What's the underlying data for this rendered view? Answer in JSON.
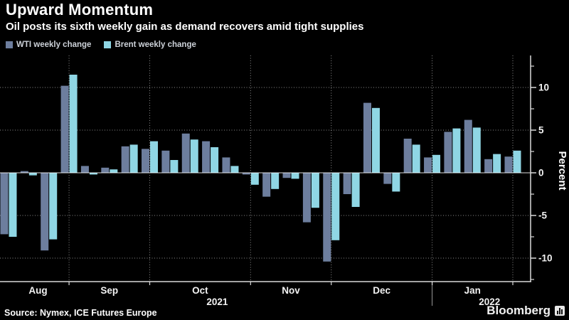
{
  "header": {
    "title": "Upward Momentum",
    "subtitle": "Oil posts its sixth weekly gain as demand recovers amid tight supplies"
  },
  "chart_data": {
    "type": "bar",
    "title": "Upward Momentum",
    "subtitle": "Oil posts its sixth weekly gain as demand recovers amid tight supplies",
    "ylabel": "Percent",
    "ylim": [
      -12.75,
      13.75
    ],
    "y_ticks_major": [
      10,
      5,
      0,
      -5,
      -10
    ],
    "y_ticks_minor": [
      12.5,
      7.5,
      2.5,
      -2.5,
      -7.5,
      -12.5
    ],
    "grid": true,
    "legend_position": "top-left",
    "months": [
      {
        "label": "Aug",
        "weeks": 4
      },
      {
        "label": "Sep",
        "weeks": 4
      },
      {
        "label": "Oct",
        "weeks": 5
      },
      {
        "label": "Nov",
        "weeks": 4
      },
      {
        "label": "Dec",
        "weeks": 5
      },
      {
        "label": "Jan",
        "weeks": 4
      }
    ],
    "year_labels": [
      {
        "label": "2021",
        "under_month": "Oct"
      },
      {
        "label": "2022",
        "under_month": "Jan"
      }
    ],
    "year_divider_after_month": "Dec",
    "series": [
      {
        "name": "WTI weekly change",
        "color": "#6d7e9e",
        "values": [
          -7.2,
          0.2,
          -9.1,
          10.2,
          0.8,
          0.6,
          3.1,
          2.8,
          2.6,
          4.6,
          3.7,
          1.8,
          -0.2,
          -2.8,
          -0.6,
          -5.8,
          -10.4,
          -2.5,
          8.2,
          -1.3,
          4.0,
          1.8,
          4.8,
          6.2,
          1.6,
          1.9
        ]
      },
      {
        "name": "Brent weekly change",
        "color": "#8fd6e4",
        "values": [
          -7.5,
          -0.3,
          -7.8,
          11.5,
          -0.2,
          0.4,
          3.3,
          3.7,
          1.5,
          3.9,
          3.0,
          0.8,
          -1.4,
          -1.9,
          -0.7,
          -4.1,
          -7.9,
          -4.0,
          7.6,
          -2.2,
          3.3,
          2.1,
          5.2,
          5.3,
          2.2,
          2.6
        ]
      }
    ]
  },
  "footer": {
    "source": "Source: Nymex, ICE Futures Europe",
    "brand": "Bloomberg"
  },
  "colors": {
    "background": "#000000",
    "text": "#ffffff",
    "grid": "rgba(255,255,255,0.55)",
    "wti": "#6d7e9e",
    "brent": "#8fd6e4"
  }
}
